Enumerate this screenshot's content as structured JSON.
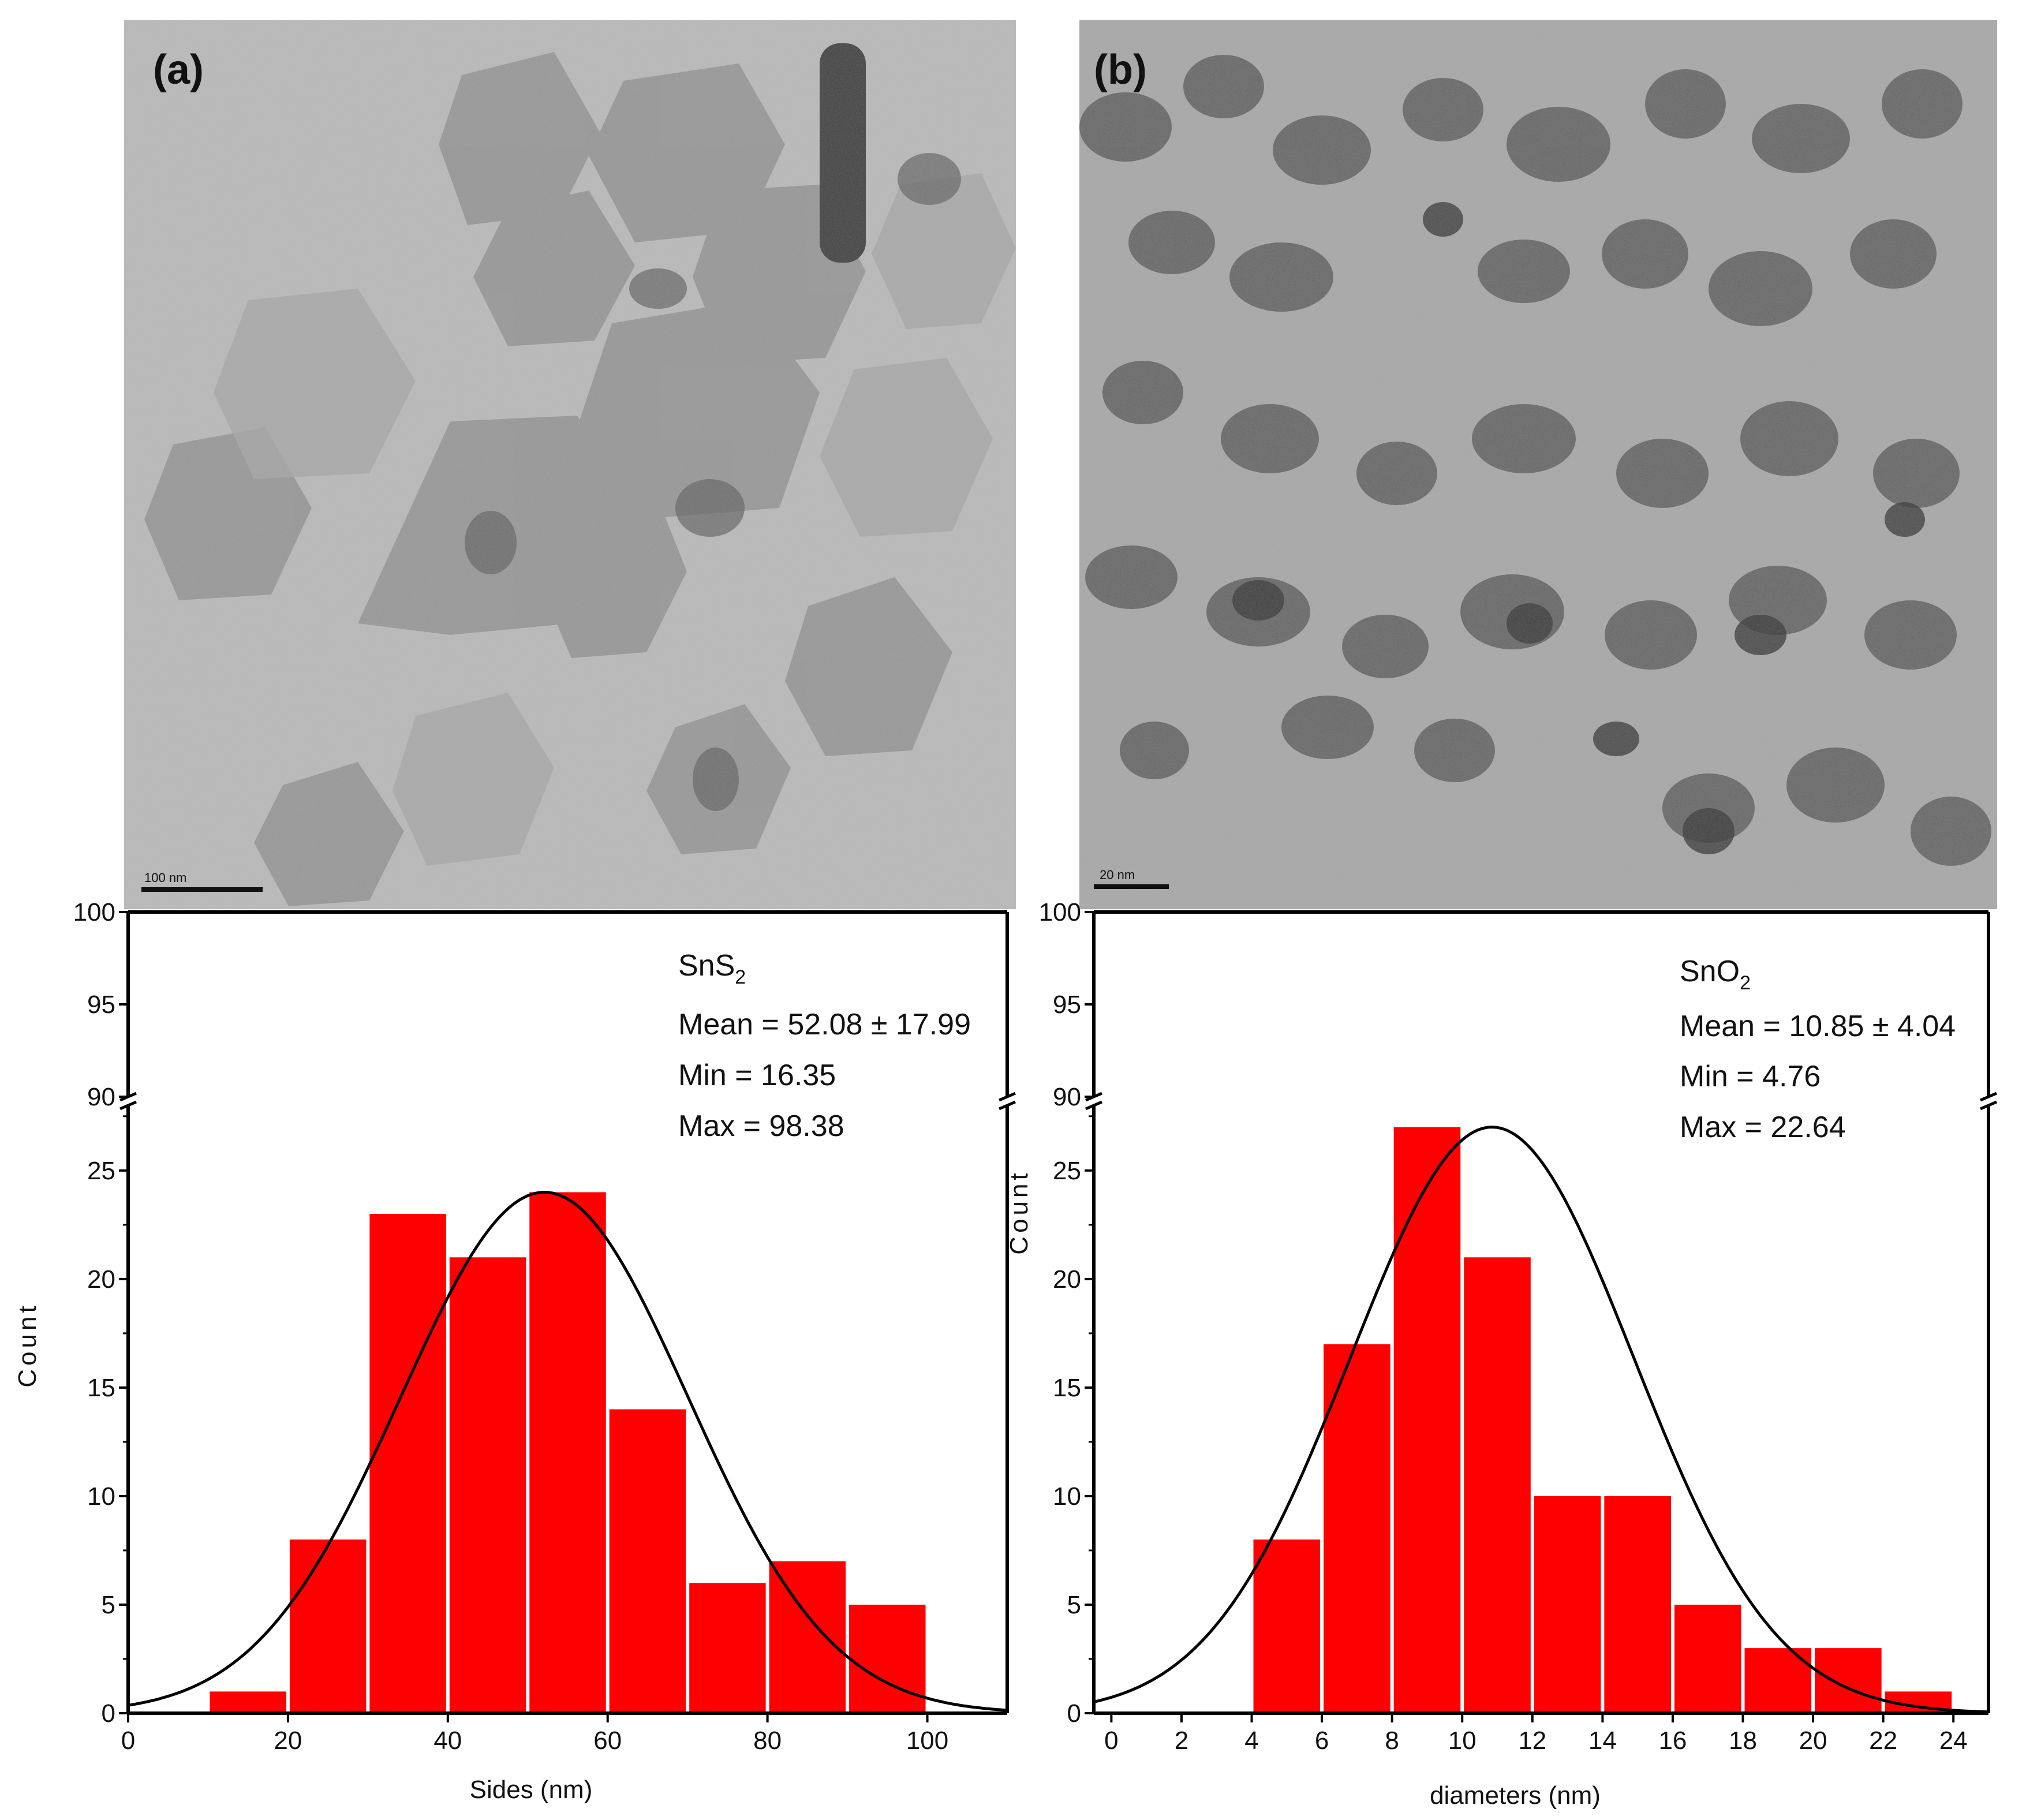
{
  "panels": [
    {
      "label": "(a)",
      "scale_bar": "100 nm"
    },
    {
      "label": "(b)",
      "scale_bar": "20 nm"
    }
  ],
  "colors": {
    "bar": "#ff0000",
    "curve": "#000000",
    "axis": "#000000"
  },
  "chart_data": [
    {
      "type": "bar",
      "title": "",
      "xlabel": "Sides (nm)",
      "ylabel": "Count",
      "xlim": [
        0,
        110
      ],
      "ylim_lower": [
        0,
        28
      ],
      "ylim_upper": [
        90,
        100
      ],
      "xticks": [
        0,
        20,
        40,
        60,
        80,
        100
      ],
      "yticks_lower": [
        0,
        5,
        10,
        15,
        20,
        25
      ],
      "yticks_upper": [
        90,
        95,
        100
      ],
      "bins": [
        [
          10,
          20
        ],
        [
          20,
          30
        ],
        [
          30,
          40
        ],
        [
          40,
          50
        ],
        [
          50,
          60
        ],
        [
          60,
          70
        ],
        [
          70,
          80
        ],
        [
          80,
          90
        ],
        [
          90,
          100
        ]
      ],
      "values": [
        1,
        8,
        23,
        21,
        24,
        14,
        6,
        7,
        5
      ],
      "fit": {
        "type": "gaussian",
        "mean": 52.08,
        "sd": 17.99,
        "peak": 24
      },
      "annotation": {
        "material": "SnS",
        "subscript": "2",
        "mean": "Mean = 52.08 ± 17.99",
        "min": "Min = 16.35",
        "max": "Max = 98.38"
      }
    },
    {
      "type": "bar",
      "title": "",
      "xlabel": "diameters (nm)",
      "ylabel": "Count",
      "xlim": [
        -0.5,
        25
      ],
      "ylim_lower": [
        0,
        28
      ],
      "ylim_upper": [
        90,
        100
      ],
      "xticks": [
        0,
        2,
        4,
        6,
        8,
        10,
        12,
        14,
        16,
        18,
        20,
        22,
        24
      ],
      "yticks_lower": [
        0,
        5,
        10,
        15,
        20,
        25
      ],
      "yticks_upper": [
        90,
        95,
        100
      ],
      "bins": [
        [
          4,
          6
        ],
        [
          6,
          8
        ],
        [
          8,
          10
        ],
        [
          10,
          12
        ],
        [
          12,
          14
        ],
        [
          14,
          16
        ],
        [
          16,
          18
        ],
        [
          18,
          20
        ],
        [
          20,
          22
        ],
        [
          22,
          24
        ]
      ],
      "values": [
        8,
        17,
        27,
        21,
        10,
        10,
        5,
        3,
        3,
        1
      ],
      "fit": {
        "type": "gaussian",
        "mean": 10.85,
        "sd": 4.04,
        "peak": 27
      },
      "annotation": {
        "material": "SnO",
        "subscript": "2",
        "mean": "Mean = 10.85 ± 4.04",
        "min": "Min = 4.76",
        "max": "Max = 22.64"
      }
    }
  ]
}
